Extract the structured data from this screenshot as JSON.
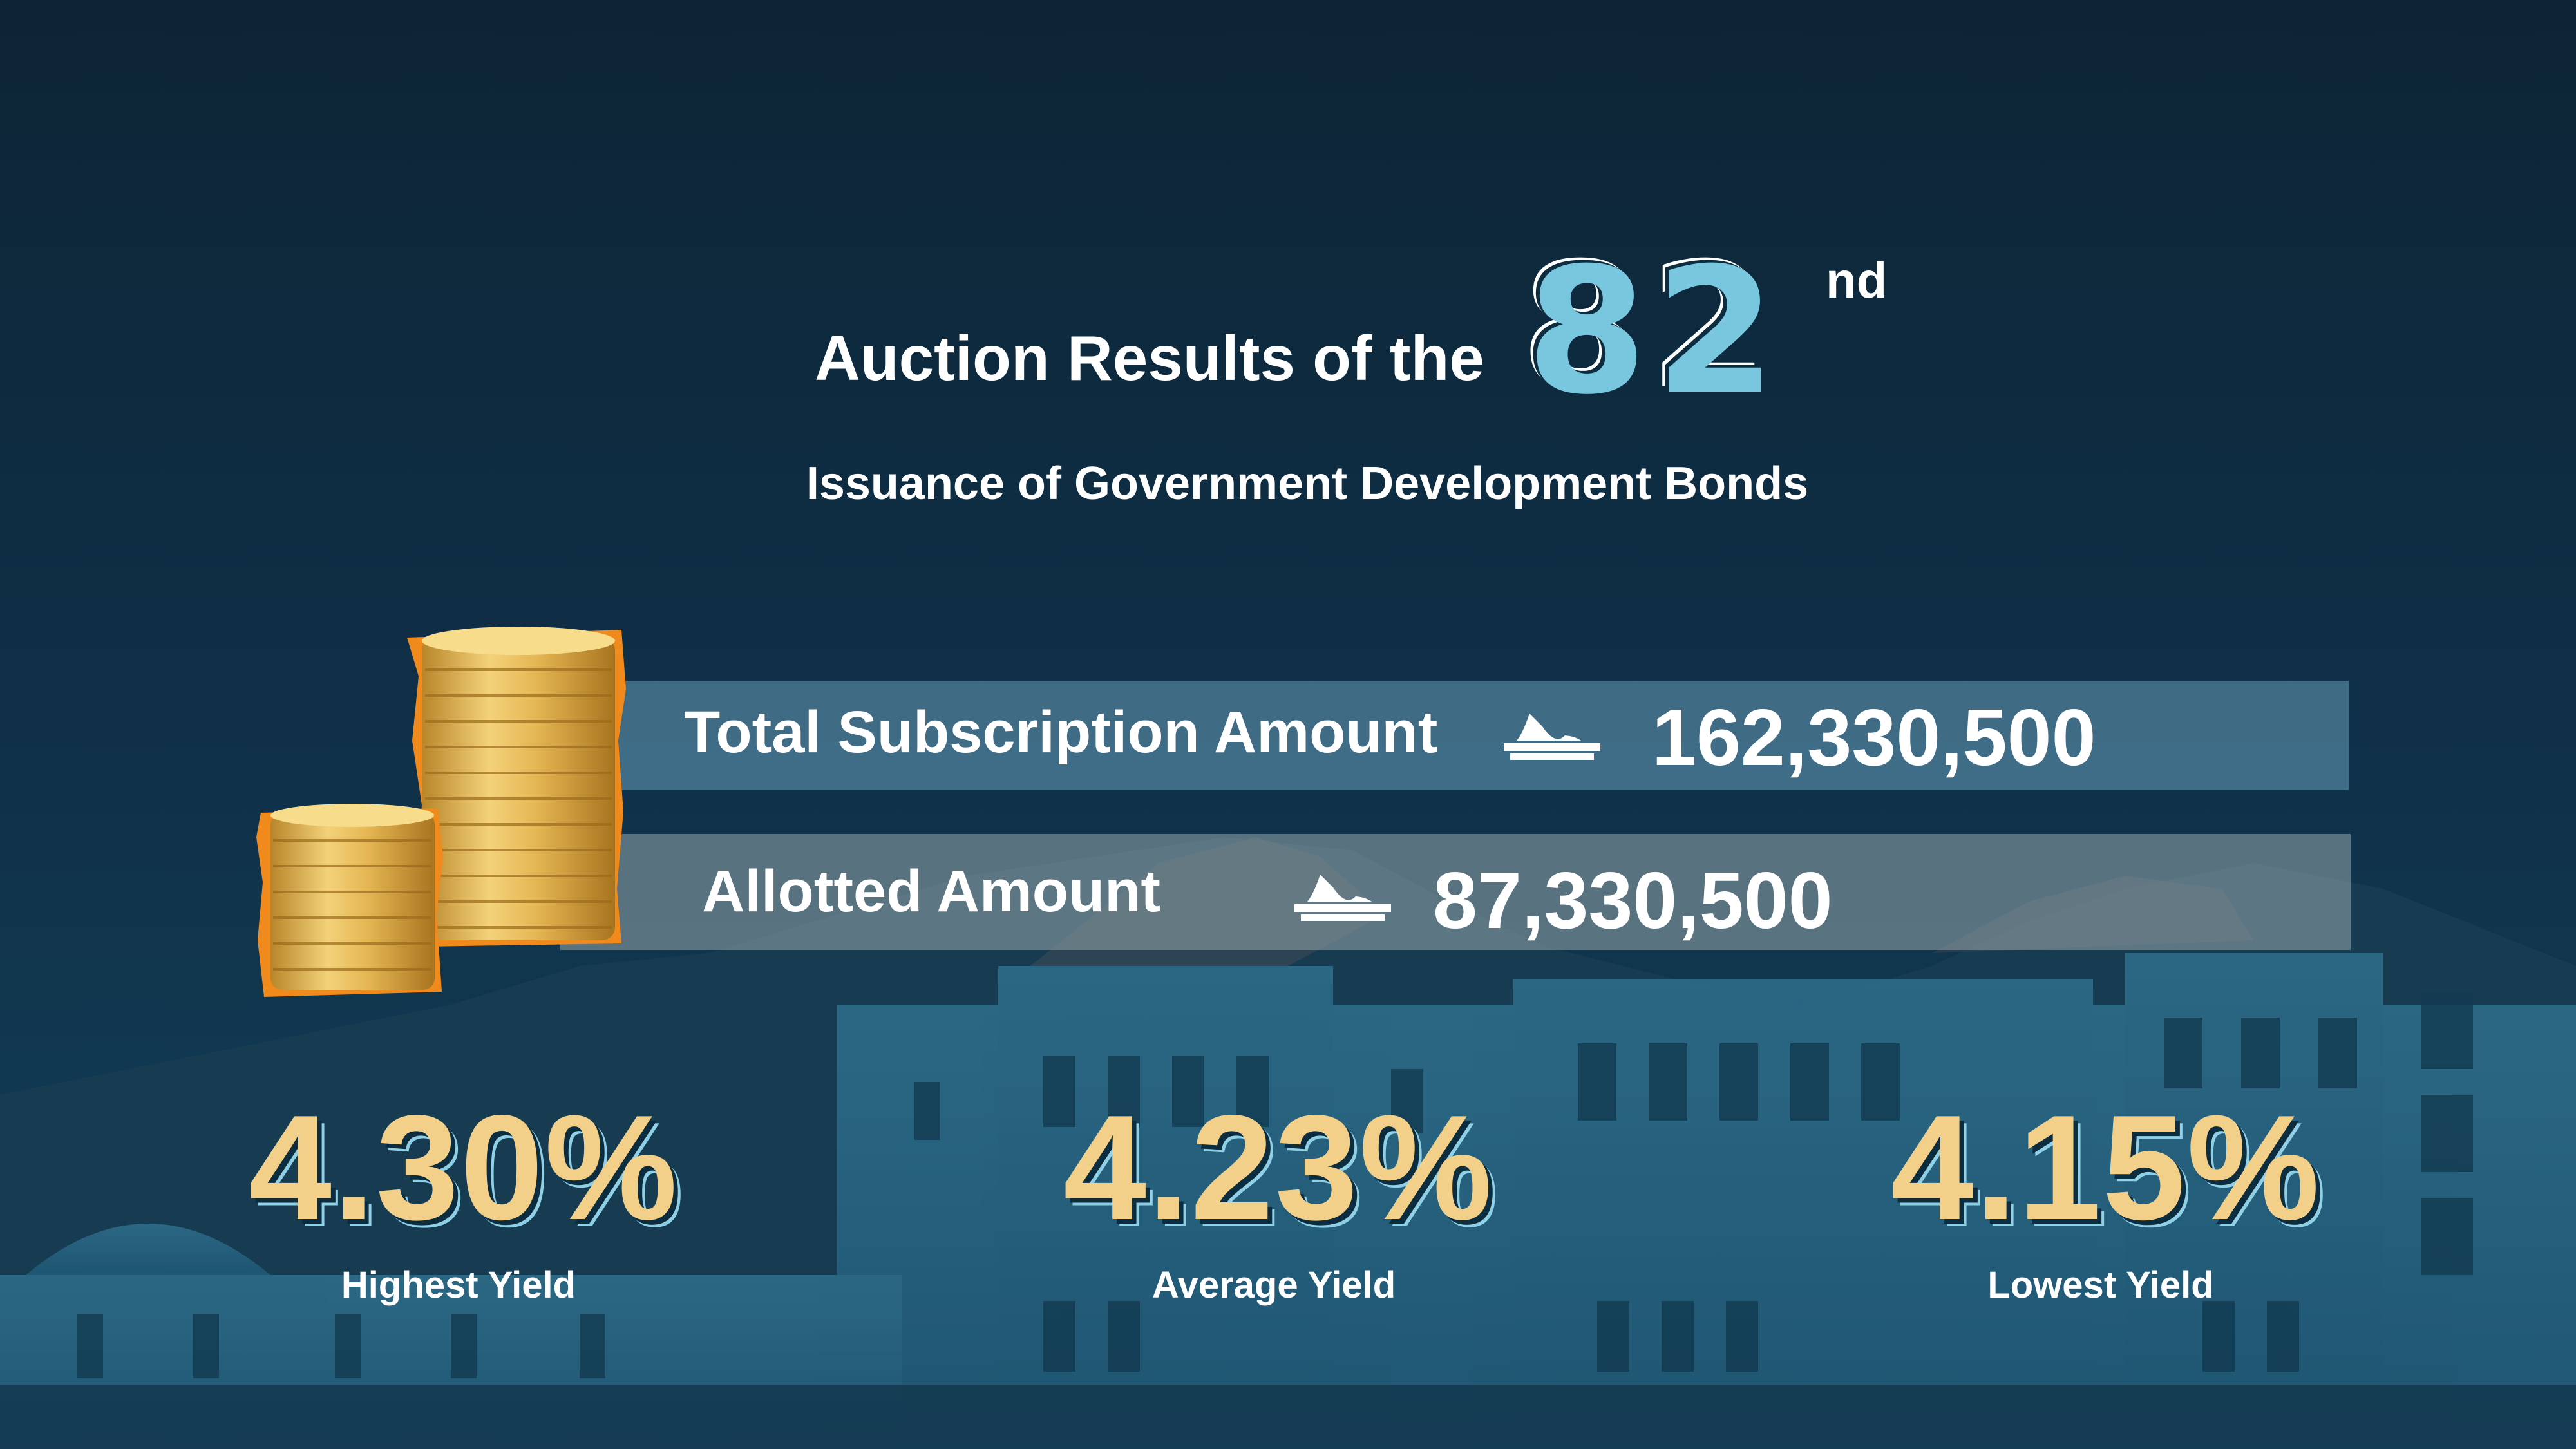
{
  "header": {
    "title_prefix": "Auction Results of the",
    "issue_number": "82",
    "issue_suffix": "nd",
    "subtitle": "Issuance of Government Development Bonds"
  },
  "amounts": [
    {
      "label": "Total Subscription Amount",
      "currency_icon": "omani-rial-icon",
      "value": "162,330,500"
    },
    {
      "label": "Allotted Amount",
      "currency_icon": "omani-rial-icon",
      "value": "87,330,500"
    }
  ],
  "yields": [
    {
      "value": "4.30%",
      "label": "Highest Yield"
    },
    {
      "value": "4.23%",
      "label": "Average Yield"
    },
    {
      "value": "4.15%",
      "label": "Lowest Yield"
    }
  ],
  "colors": {
    "background": "#0c2c40",
    "accent_blue": "#79c6df",
    "yield_gold": "#f2d08a",
    "coin_gold": "#e8b64a",
    "coin_outline": "#f08a1c"
  }
}
